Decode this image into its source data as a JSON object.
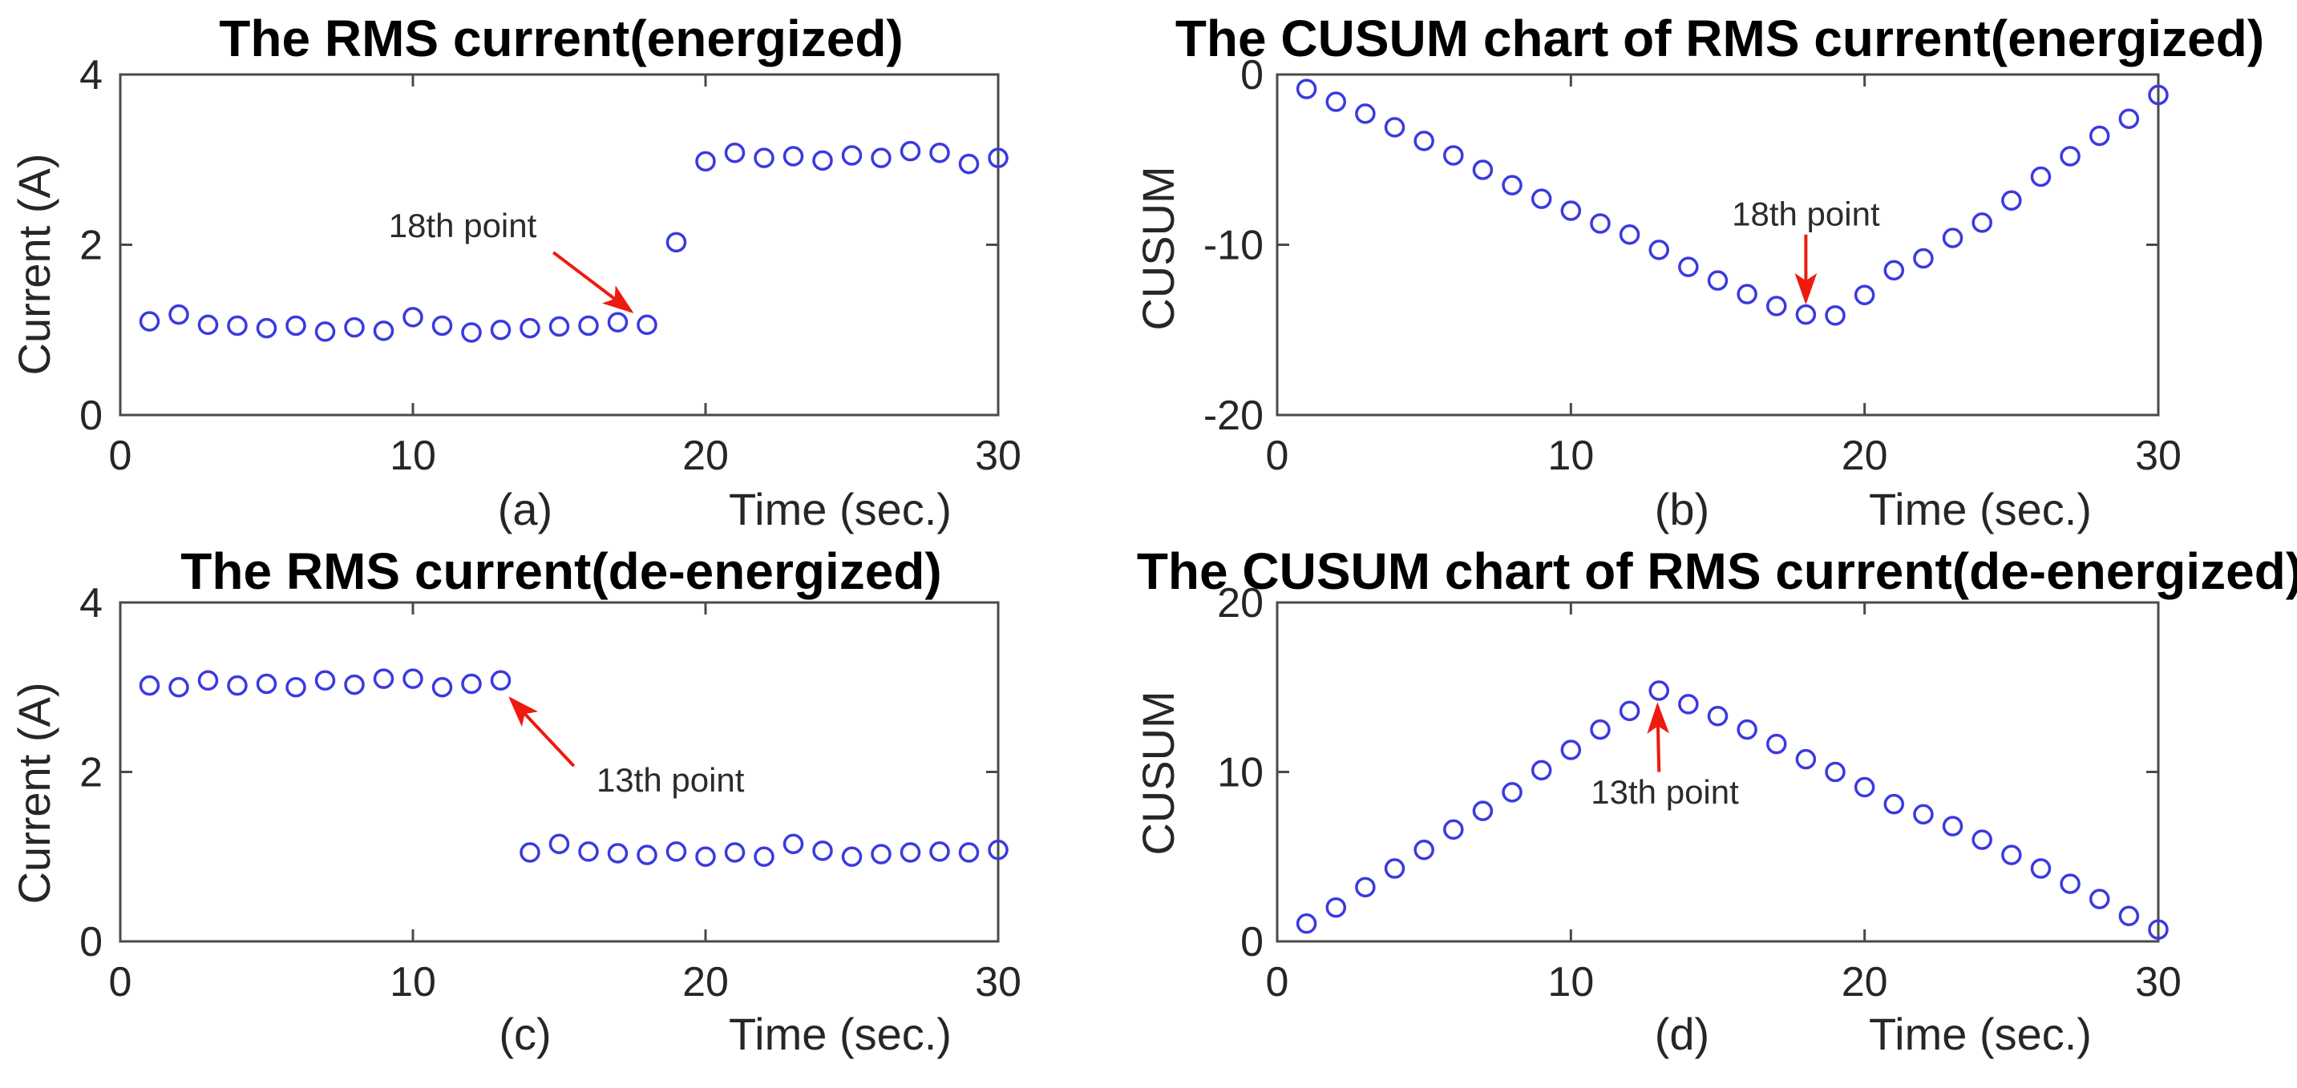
{
  "figure": {
    "background": "#ffffff",
    "marker_color": "#3a3ae0",
    "axis_color": "#4a4a4a",
    "tick_text_color": "#262626",
    "title_color": "#000000",
    "arrow_color": "#ee1a10"
  },
  "chart_data": [
    {
      "type": "scatter",
      "panel": "(a)",
      "title": "The RMS current(energized)",
      "xlabel": "Time (sec.)",
      "ylabel": "Current (A)",
      "xlim": [
        0,
        30
      ],
      "ylim": [
        0,
        4
      ],
      "xticks": [
        "0",
        "10",
        "20",
        "30"
      ],
      "yticks": [
        "0",
        "2",
        "4"
      ],
      "xtick_vals": [
        0,
        10,
        20,
        30
      ],
      "ytick_vals": [
        0,
        2,
        4
      ],
      "x": [
        1,
        2,
        3,
        4,
        5,
        6,
        7,
        8,
        9,
        10,
        11,
        12,
        13,
        14,
        15,
        16,
        17,
        18,
        19,
        20,
        21,
        22,
        23,
        24,
        25,
        26,
        27,
        28,
        29,
        30
      ],
      "y": [
        1.1,
        1.18,
        1.06,
        1.05,
        1.02,
        1.05,
        0.98,
        1.03,
        0.99,
        1.15,
        1.05,
        0.97,
        1.0,
        1.02,
        1.04,
        1.05,
        1.09,
        1.06,
        2.03,
        2.98,
        3.08,
        3.02,
        3.04,
        2.99,
        3.05,
        3.02,
        3.1,
        3.08,
        2.95,
        3.02
      ],
      "annotation": {
        "text": "18th point",
        "text_x": 11.7,
        "text_y": 2.22,
        "arrow": {
          "x1": 14.8,
          "y1": 1.91,
          "x2": 17.45,
          "y2": 1.22
        }
      }
    },
    {
      "type": "scatter",
      "panel": "(b)",
      "title": "The CUSUM chart of RMS current(energized)",
      "xlabel": "Time (sec.)",
      "ylabel": "CUSUM",
      "xlim": [
        0,
        30
      ],
      "ylim": [
        -20,
        0
      ],
      "xticks": [
        "0",
        "10",
        "20",
        "30"
      ],
      "yticks": [
        "-20",
        "-10",
        "0"
      ],
      "xtick_vals": [
        0,
        10,
        20,
        30
      ],
      "ytick_vals": [
        -20,
        -10,
        0
      ],
      "x": [
        1,
        2,
        3,
        4,
        5,
        6,
        7,
        8,
        9,
        10,
        11,
        12,
        13,
        14,
        15,
        16,
        17,
        18,
        19,
        20,
        21,
        22,
        23,
        24,
        25,
        26,
        27,
        28,
        29,
        30
      ],
      "y": [
        -0.85,
        -1.6,
        -2.3,
        -3.1,
        -3.9,
        -4.75,
        -5.6,
        -6.5,
        -7.3,
        -8.0,
        -8.75,
        -9.4,
        -10.3,
        -11.3,
        -12.1,
        -12.9,
        -13.6,
        -14.1,
        -14.15,
        -12.95,
        -11.5,
        -10.8,
        -9.6,
        -8.7,
        -7.4,
        -6.0,
        -4.8,
        -3.6,
        -2.6,
        -1.2
      ],
      "annotation": {
        "text": "18th point",
        "text_x": 18.0,
        "text_y": -8.2,
        "arrow": {
          "x1": 18.0,
          "y1": -9.4,
          "x2": 18.0,
          "y2": -13.3
        }
      }
    },
    {
      "type": "scatter",
      "panel": "(c)",
      "title": "The RMS current(de-energized)",
      "xlabel": "Time (sec.)",
      "ylabel": "Current (A)",
      "xlim": [
        0,
        30
      ],
      "ylim": [
        0,
        4
      ],
      "xticks": [
        "0",
        "10",
        "20",
        "30"
      ],
      "yticks": [
        "0",
        "2",
        "4"
      ],
      "xtick_vals": [
        0,
        10,
        20,
        30
      ],
      "ytick_vals": [
        0,
        2,
        4
      ],
      "x": [
        1,
        2,
        3,
        4,
        5,
        6,
        7,
        8,
        9,
        10,
        11,
        12,
        13,
        14,
        15,
        16,
        17,
        18,
        19,
        20,
        21,
        22,
        23,
        24,
        25,
        26,
        27,
        28,
        29,
        30
      ],
      "y": [
        3.02,
        3.0,
        3.08,
        3.02,
        3.04,
        3.0,
        3.08,
        3.03,
        3.1,
        3.1,
        3.0,
        3.04,
        3.08,
        1.05,
        1.15,
        1.06,
        1.04,
        1.02,
        1.06,
        1.0,
        1.05,
        1.0,
        1.15,
        1.07,
        1.0,
        1.03,
        1.05,
        1.06,
        1.05,
        1.08
      ],
      "annotation": {
        "text": "13th point",
        "text_x": 18.8,
        "text_y": 1.9,
        "arrow": {
          "x1": 15.5,
          "y1": 2.07,
          "x2": 13.35,
          "y2": 2.86
        }
      }
    },
    {
      "type": "scatter",
      "panel": "(d)",
      "title": "The CUSUM chart of RMS current(de-energized)",
      "xlabel": "Time (sec.)",
      "ylabel": "CUSUM",
      "xlim": [
        0,
        30
      ],
      "ylim": [
        0,
        20
      ],
      "xticks": [
        "0",
        "10",
        "20",
        "30"
      ],
      "yticks": [
        "0",
        "10",
        "20"
      ],
      "xtick_vals": [
        0,
        10,
        20,
        30
      ],
      "ytick_vals": [
        0,
        10,
        20
      ],
      "x": [
        1,
        2,
        3,
        4,
        5,
        6,
        7,
        8,
        9,
        10,
        11,
        12,
        13,
        14,
        15,
        16,
        17,
        18,
        19,
        20,
        21,
        22,
        23,
        24,
        25,
        26,
        27,
        28,
        29,
        30
      ],
      "y": [
        1.05,
        2.0,
        3.2,
        4.3,
        5.4,
        6.6,
        7.7,
        8.8,
        10.1,
        11.3,
        12.5,
        13.6,
        14.8,
        14.0,
        13.3,
        12.5,
        11.65,
        10.75,
        10.0,
        9.1,
        8.1,
        7.5,
        6.8,
        6.0,
        5.1,
        4.3,
        3.4,
        2.5,
        1.5,
        0.7
      ],
      "annotation": {
        "text": "13th point",
        "text_x": 13.2,
        "text_y": 8.8,
        "arrow": {
          "x1": 13.0,
          "y1": 10.0,
          "x2": 12.95,
          "y2": 13.9
        }
      }
    }
  ]
}
